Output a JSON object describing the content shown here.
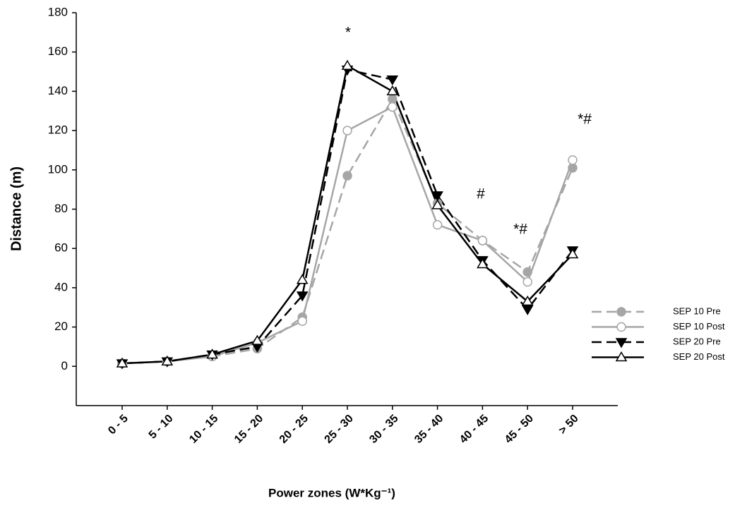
{
  "chart_data": {
    "type": "line",
    "xlabel": "Power zones (W*Kg⁻¹)",
    "ylabel": "Distance (m)",
    "categories": [
      "0 - 5",
      "5 - 10",
      "10 - 15",
      "15 - 20",
      "20 - 25",
      "25 - 30",
      "30 - 35",
      "35 - 40",
      "40 - 45",
      "45 - 50",
      "> 50"
    ],
    "series": [
      {
        "name": "SEP 10 Pre",
        "color": "#a6a6a6",
        "dash": true,
        "marker": "circle",
        "filled": true,
        "values": [
          1.5,
          2.5,
          5,
          9,
          25,
          97,
          136,
          83,
          64,
          48,
          101
        ]
      },
      {
        "name": "SEP 10 Post",
        "color": "#a6a6a6",
        "dash": false,
        "marker": "circle",
        "filled": false,
        "values": [
          1.5,
          2.5,
          5,
          12,
          23,
          120,
          132,
          72,
          64,
          43,
          105
        ]
      },
      {
        "name": "SEP 20 Pre",
        "color": "#000000",
        "dash": true,
        "marker": "triangle-down",
        "filled": true,
        "values": [
          1.5,
          2.5,
          6,
          10,
          36,
          151,
          146,
          87,
          54,
          29,
          59
        ]
      },
      {
        "name": "SEP 20 Post",
        "color": "#000000",
        "dash": false,
        "marker": "triangle-up",
        "filled": false,
        "values": [
          1.5,
          2.5,
          6,
          13,
          44,
          153,
          140,
          82,
          52,
          33,
          57
        ]
      }
    ],
    "annotations": [
      "*",
      "#",
      "*#",
      "*#"
    ],
    "ylim": [
      -20,
      180
    ],
    "yticks": [
      0,
      20,
      40,
      60,
      80,
      100,
      120,
      140,
      160,
      180
    ]
  }
}
